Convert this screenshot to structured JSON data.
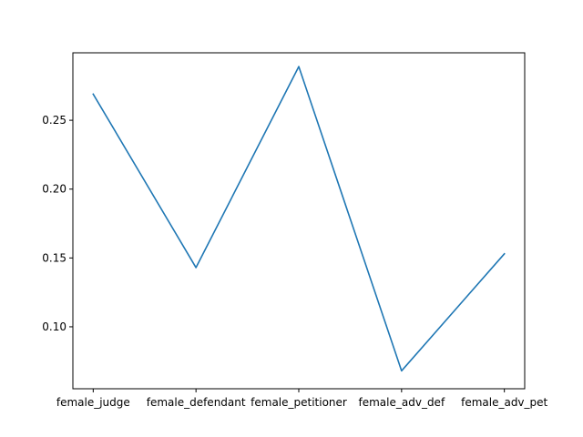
{
  "chart_data": {
    "type": "line",
    "title": "",
    "xlabel": "",
    "ylabel": "",
    "categories": [
      "female_judge",
      "female_defendant",
      "female_petitioner",
      "female_adv_def",
      "female_adv_pet"
    ],
    "series": [
      {
        "values": [
          0.269,
          0.143,
          0.289,
          0.068,
          0.153
        ],
        "color": "#1f77b4"
      }
    ],
    "ylim": [
      0.055,
      0.299
    ],
    "yticks": [
      0.1,
      0.15,
      0.2,
      0.25
    ],
    "ytick_labels": [
      "0.10",
      "0.15",
      "0.20",
      "0.25"
    ],
    "grid": false,
    "legend": "none"
  }
}
